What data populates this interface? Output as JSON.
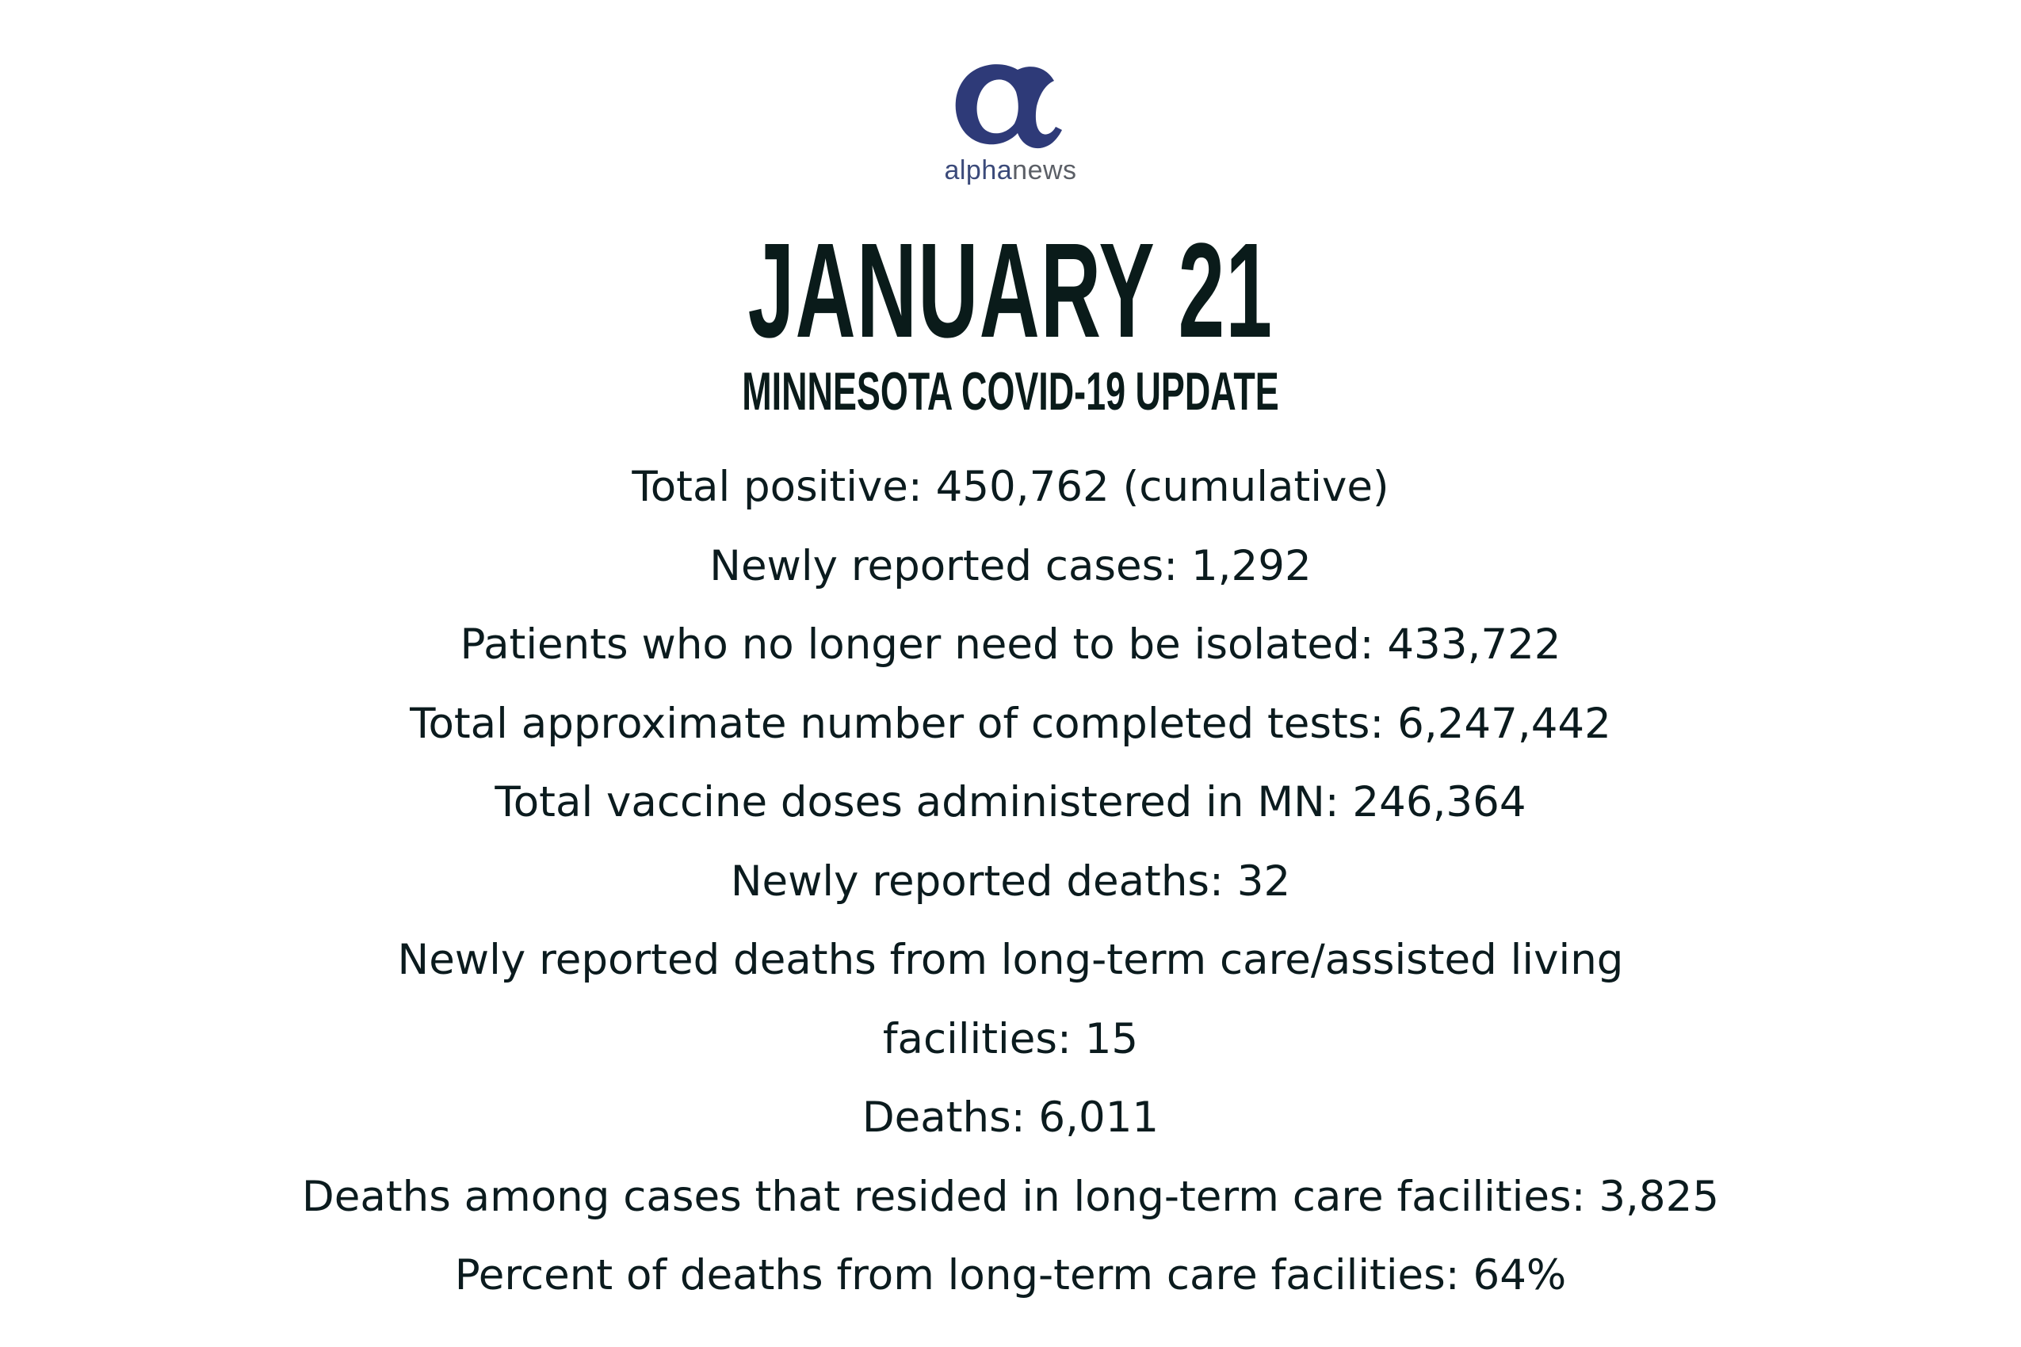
{
  "logo": {
    "brand_part1": "alpha",
    "brand_part2": "news",
    "icon": "alpha-letter-icon",
    "color": "#2e3a78"
  },
  "header": {
    "date": "JANUARY 21",
    "subtitle": "MINNESOTA COVID-19 UPDATE"
  },
  "stats": [
    "Total positive: 450,762 (cumulative)",
    "Newly reported cases: 1,292",
    "Patients who no longer need to be isolated: 433,722",
    "Total approximate number of completed tests: 6,247,442",
    "Total vaccine doses administered in MN: 246,364",
    "Newly reported deaths: 32",
    "Newly reported deaths from long-term care/assisted living",
    "facilities: 15",
    "Deaths: 6,011",
    "Deaths among cases that resided in long-term care facilities: 3,825",
    "Percent of deaths from long-term care facilities: 64%"
  ]
}
